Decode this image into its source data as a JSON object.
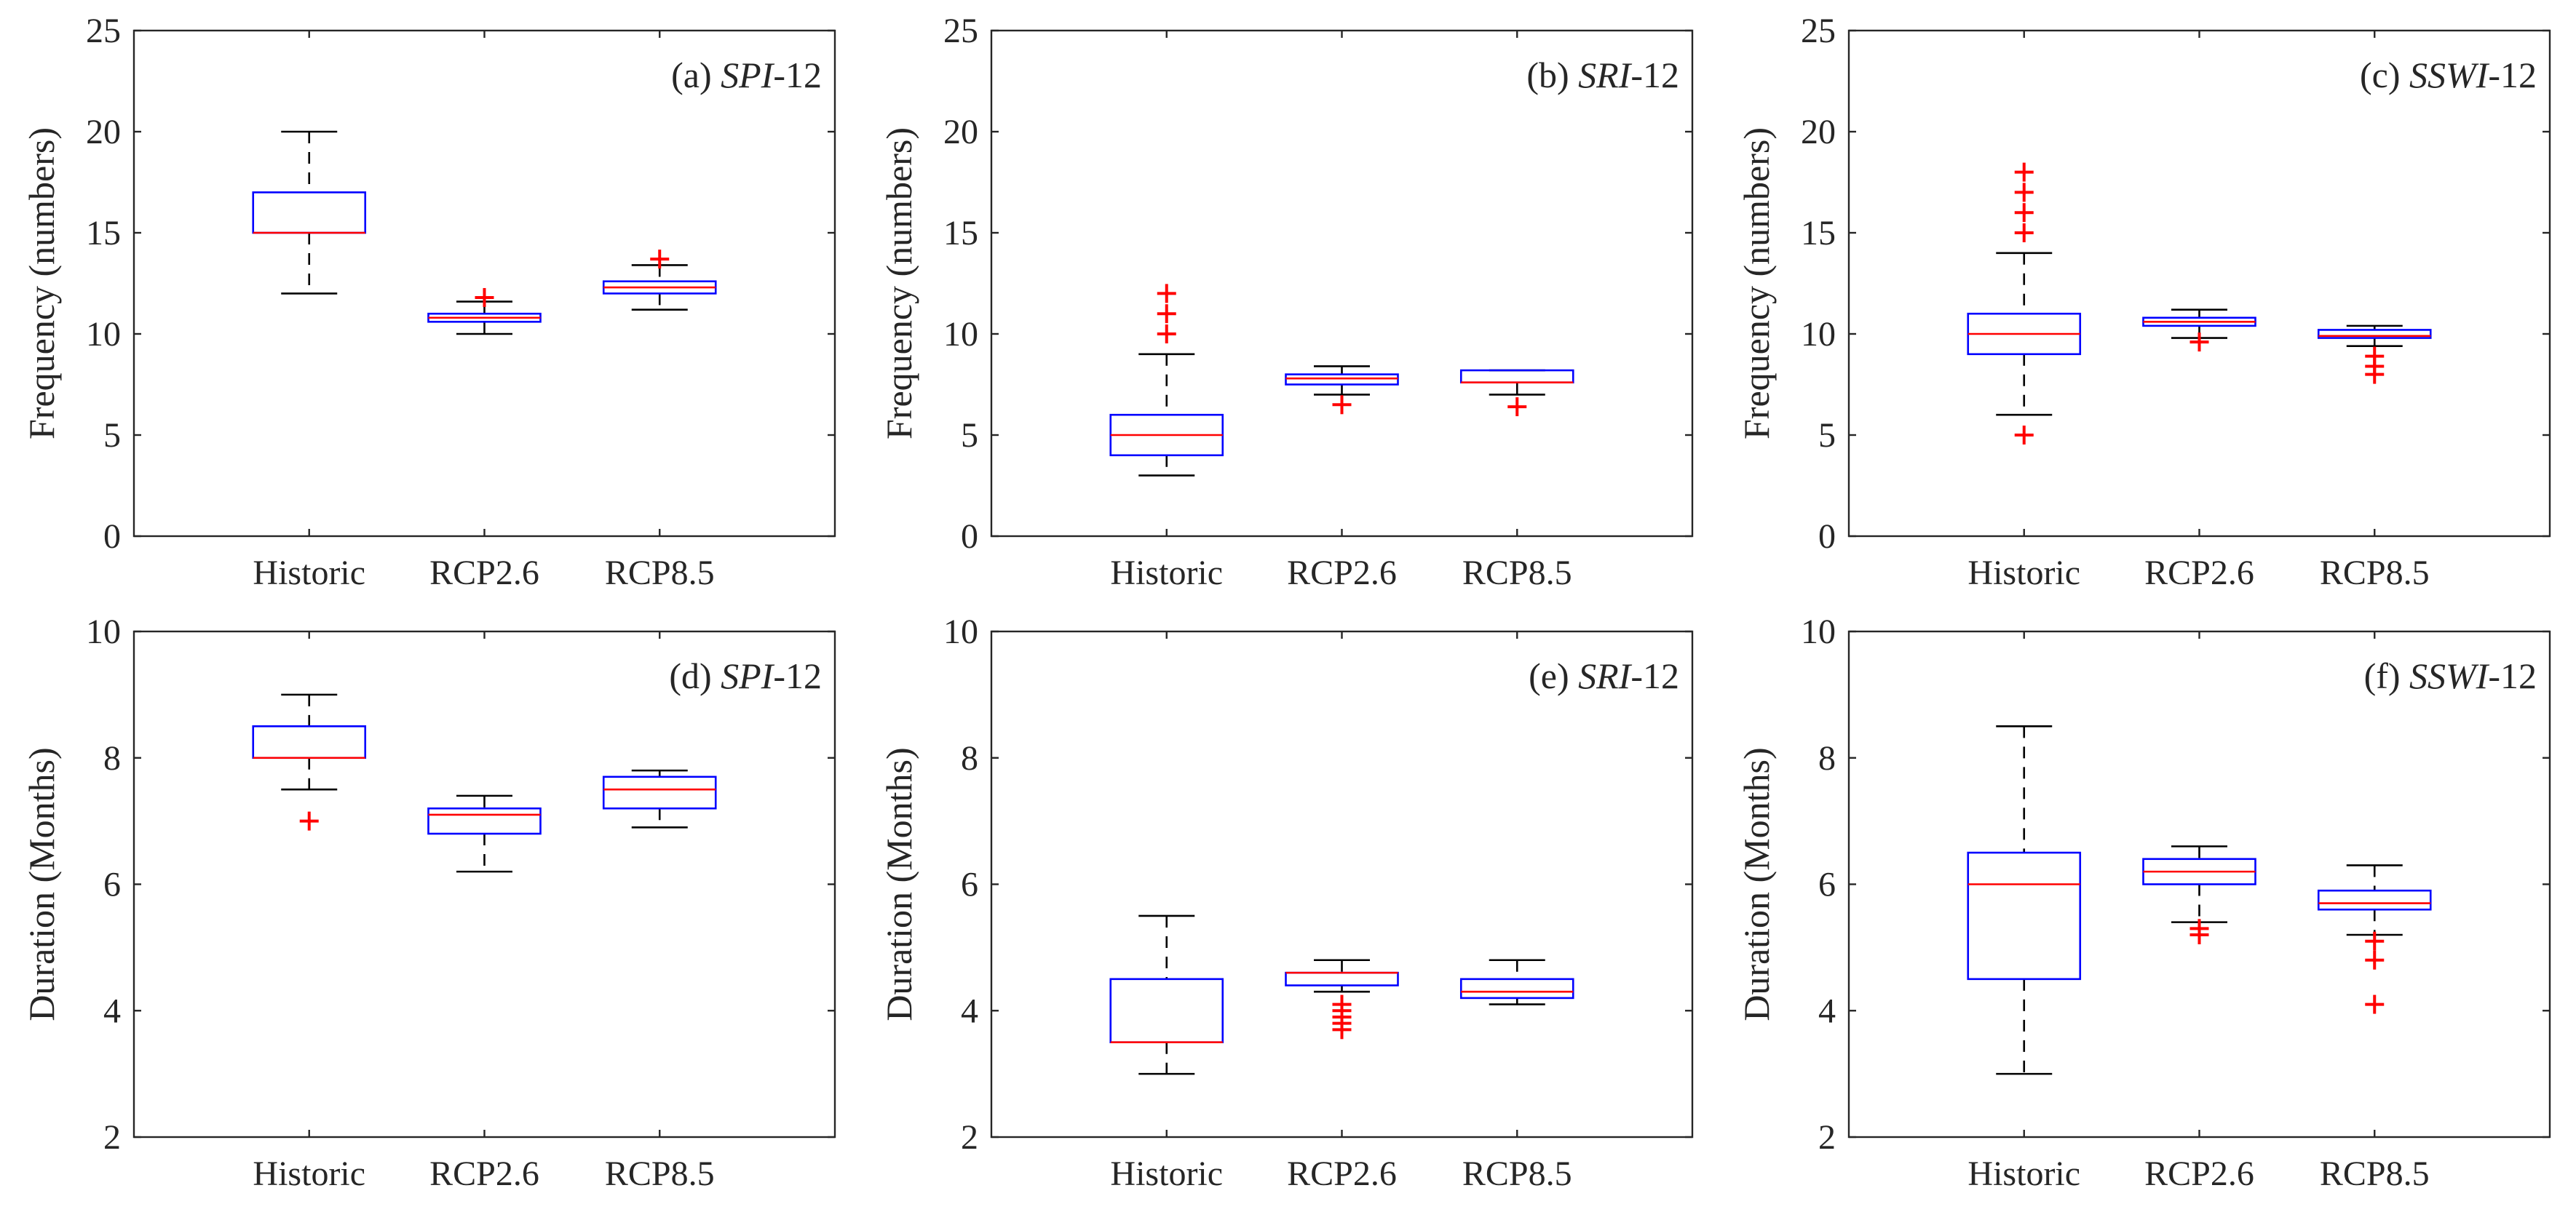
{
  "colors": {
    "box": "#0000ff",
    "median": "#ff0000",
    "whisker": "#000000",
    "outlier": "#ff0000",
    "axis": "#262626"
  },
  "chart_data": [
    {
      "type": "box",
      "title_prefix": "(a) ",
      "title_italic": "SPI",
      "title_suffix": "-12",
      "ylabel": "Frequency (numbers)",
      "ylim": [
        0,
        25
      ],
      "yticks": [
        "0",
        "5",
        "10",
        "15",
        "20",
        "25"
      ],
      "categories": [
        "Historic",
        "RCP2.6",
        "RCP8.5"
      ],
      "boxes": [
        {
          "q1": 15,
          "median": 15,
          "q3": 17,
          "whisker_low": 12,
          "whisker_high": 20,
          "outliers": []
        },
        {
          "q1": 10.6,
          "median": 10.8,
          "q3": 11.0,
          "whisker_low": 10.0,
          "whisker_high": 11.6,
          "outliers": [
            11.8
          ]
        },
        {
          "q1": 12.0,
          "median": 12.3,
          "q3": 12.6,
          "whisker_low": 11.2,
          "whisker_high": 13.4,
          "outliers": [
            13.7
          ]
        }
      ]
    },
    {
      "type": "box",
      "title_prefix": "(b) ",
      "title_italic": "SRI",
      "title_suffix": "-12",
      "ylabel": "Frequency (numbers)",
      "ylim": [
        0,
        25
      ],
      "yticks": [
        "0",
        "5",
        "10",
        "15",
        "20",
        "25"
      ],
      "categories": [
        "Historic",
        "RCP2.6",
        "RCP8.5"
      ],
      "boxes": [
        {
          "q1": 4,
          "median": 5,
          "q3": 6,
          "whisker_low": 3,
          "whisker_high": 9,
          "outliers": [
            10,
            11,
            12
          ]
        },
        {
          "q1": 7.5,
          "median": 7.8,
          "q3": 8.0,
          "whisker_low": 7.0,
          "whisker_high": 8.4,
          "outliers": [
            6.5
          ]
        },
        {
          "q1": 7.6,
          "median": 7.6,
          "q3": 8.2,
          "whisker_low": 7.0,
          "whisker_high": 8.2,
          "outliers": [
            6.4
          ]
        }
      ]
    },
    {
      "type": "box",
      "title_prefix": "(c) ",
      "title_italic": "SSWI",
      "title_suffix": "-12",
      "ylabel": "Frequency (numbers)",
      "ylim": [
        0,
        25
      ],
      "yticks": [
        "0",
        "5",
        "10",
        "15",
        "20",
        "25"
      ],
      "categories": [
        "Historic",
        "RCP2.6",
        "RCP8.5"
      ],
      "boxes": [
        {
          "q1": 9,
          "median": 10,
          "q3": 11,
          "whisker_low": 6,
          "whisker_high": 14,
          "outliers": [
            5,
            15,
            16,
            17,
            18
          ]
        },
        {
          "q1": 10.4,
          "median": 10.6,
          "q3": 10.8,
          "whisker_low": 9.8,
          "whisker_high": 11.2,
          "outliers": [
            9.6
          ]
        },
        {
          "q1": 9.8,
          "median": 9.9,
          "q3": 10.2,
          "whisker_low": 9.4,
          "whisker_high": 10.4,
          "outliers": [
            8.9,
            8.4,
            8.0
          ]
        }
      ]
    },
    {
      "type": "box",
      "title_prefix": "(d) ",
      "title_italic": "SPI",
      "title_suffix": "-12",
      "ylabel": "Duration (Months)",
      "ylim": [
        2,
        10
      ],
      "yticks": [
        "2",
        "4",
        "6",
        "8",
        "10"
      ],
      "categories": [
        "Historic",
        "RCP2.6",
        "RCP8.5"
      ],
      "boxes": [
        {
          "q1": 8,
          "median": 8,
          "q3": 8.5,
          "whisker_low": 7.5,
          "whisker_high": 9,
          "outliers": [
            7
          ]
        },
        {
          "q1": 6.8,
          "median": 7.1,
          "q3": 7.2,
          "whisker_low": 6.2,
          "whisker_high": 7.4,
          "outliers": []
        },
        {
          "q1": 7.2,
          "median": 7.5,
          "q3": 7.7,
          "whisker_low": 6.9,
          "whisker_high": 7.8,
          "outliers": []
        }
      ]
    },
    {
      "type": "box",
      "title_prefix": "(e) ",
      "title_italic": "SRI",
      "title_suffix": "-12",
      "ylabel": "Duration (Months)",
      "ylim": [
        2,
        10
      ],
      "yticks": [
        "2",
        "4",
        "6",
        "8",
        "10"
      ],
      "categories": [
        "Historic",
        "RCP2.6",
        "RCP8.5"
      ],
      "boxes": [
        {
          "q1": 3.5,
          "median": 3.5,
          "q3": 4.5,
          "whisker_low": 3,
          "whisker_high": 5.5,
          "outliers": []
        },
        {
          "q1": 4.4,
          "median": 4.6,
          "q3": 4.6,
          "whisker_low": 4.3,
          "whisker_high": 4.8,
          "outliers": [
            4.1,
            4.0,
            3.9,
            3.8,
            3.7
          ]
        },
        {
          "q1": 4.2,
          "median": 4.3,
          "q3": 4.5,
          "whisker_low": 4.1,
          "whisker_high": 4.8,
          "outliers": []
        }
      ]
    },
    {
      "type": "box",
      "title_prefix": "(f) ",
      "title_italic": "SSWI",
      "title_suffix": "-12",
      "ylabel": "Duration (Months)",
      "ylim": [
        2,
        10
      ],
      "yticks": [
        "2",
        "4",
        "6",
        "8",
        "10"
      ],
      "categories": [
        "Historic",
        "RCP2.6",
        "RCP8.5"
      ],
      "boxes": [
        {
          "q1": 4.5,
          "median": 6,
          "q3": 6.5,
          "whisker_low": 3,
          "whisker_high": 8.5,
          "outliers": []
        },
        {
          "q1": 6.0,
          "median": 6.2,
          "q3": 6.4,
          "whisker_low": 5.4,
          "whisker_high": 6.6,
          "outliers": [
            5.3,
            5.2
          ]
        },
        {
          "q1": 5.6,
          "median": 5.7,
          "q3": 5.9,
          "whisker_low": 5.2,
          "whisker_high": 6.3,
          "outliers": [
            5.1,
            4.8,
            4.1
          ]
        }
      ]
    }
  ]
}
